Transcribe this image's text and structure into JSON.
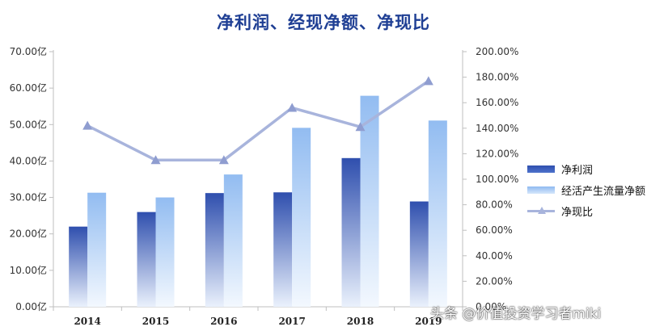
{
  "chart_data": {
    "type": "bar",
    "title": "净利润、经现净额、净现比",
    "categories": [
      "2014",
      "2015",
      "2016",
      "2017",
      "2018",
      "2019"
    ],
    "y_left": {
      "ylim": [
        0,
        70
      ],
      "ticks": [
        "0.00亿",
        "10.00亿",
        "20.00亿",
        "30.00亿",
        "40.00亿",
        "50.00亿",
        "60.00亿",
        "70.00亿"
      ]
    },
    "y_right": {
      "ylim": [
        0,
        200
      ],
      "ticks": [
        "0.00%",
        "20.00%",
        "40.00%",
        "60.00%",
        "80.00%",
        "100.00%",
        "120.00%",
        "140.00%",
        "160.00%",
        "180.00%",
        "200.00%"
      ]
    },
    "series": [
      {
        "name": "净利润",
        "type": "bar",
        "axis": "left",
        "color": "#3558b8",
        "values": [
          22.0,
          26.0,
          31.2,
          31.4,
          40.8,
          28.9
        ]
      },
      {
        "name": "经活产生流量净额",
        "type": "bar",
        "axis": "left",
        "color": "#9ec3f2",
        "values": [
          31.3,
          30.0,
          36.3,
          49.1,
          57.9,
          51.1
        ]
      },
      {
        "name": "净现比",
        "type": "line",
        "axis": "right",
        "color": "#a8b4dc",
        "marker": "triangle",
        "values": [
          142.0,
          115.0,
          115.0,
          156.0,
          141.0,
          177.0
        ]
      }
    ],
    "legend_position": "right",
    "grid": false
  },
  "watermark": "头条 @价值投资学习者miki"
}
